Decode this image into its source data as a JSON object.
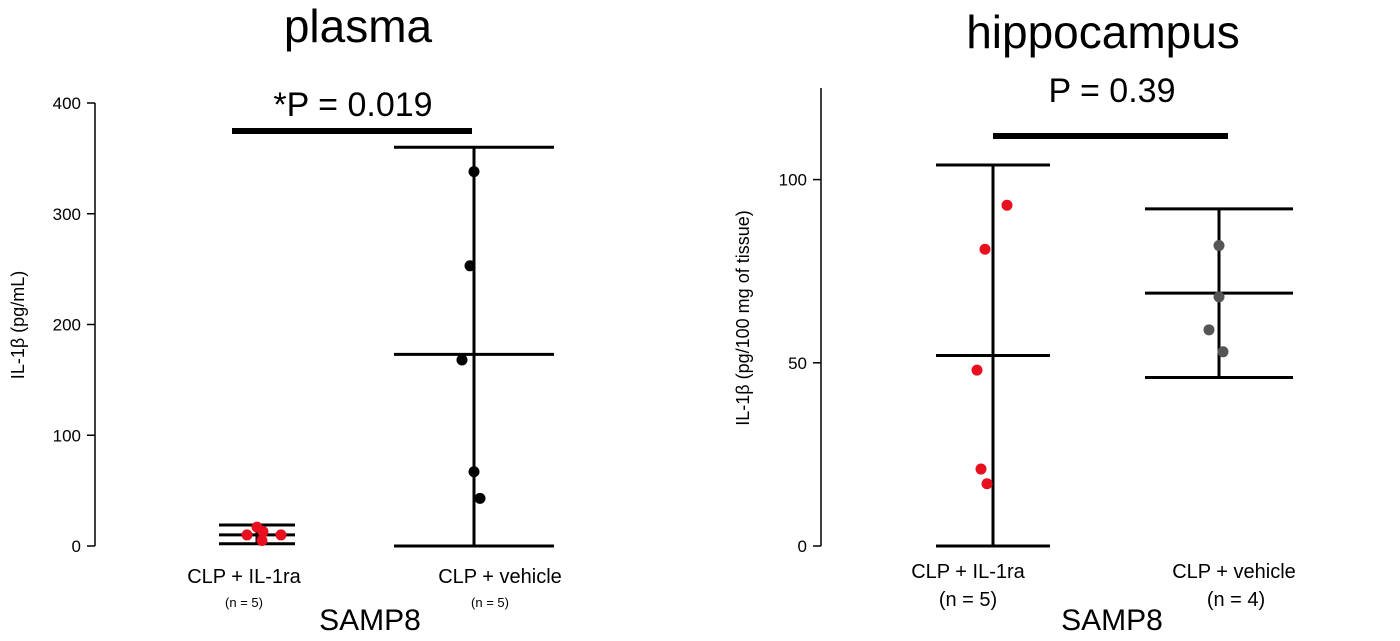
{
  "chart_data": [
    {
      "type": "scatter",
      "title": "plasma",
      "ylabel": "IL-1β (pg/mL)",
      "xlabel": "SAMP8",
      "ylim": [
        0,
        400
      ],
      "yticks": [
        "0",
        "100",
        "200",
        "300",
        "400"
      ],
      "significance": "*P = 0.019",
      "categories": [
        {
          "label": "CLP + IL-1ra",
          "n_label": "(n = 5)",
          "color": "#e8101e",
          "points": [
            17,
            13,
            10,
            10,
            5
          ],
          "mean": 10,
          "error_low": 2,
          "error_high": 19
        },
        {
          "label": "CLP + vehicle",
          "n_label": "(n = 5)",
          "color": "#000000",
          "points": [
            338,
            253,
            168,
            67,
            43
          ],
          "mean": 173,
          "error_low": 0,
          "error_high": 360
        }
      ]
    },
    {
      "type": "scatter",
      "title": "hippocampus",
      "ylabel": "IL-1β (pg/100 mg of tissue)",
      "xlabel": "SAMP8",
      "ylim": [
        0,
        125
      ],
      "yticks": [
        "0",
        "50",
        "100"
      ],
      "significance": "P = 0.39",
      "categories": [
        {
          "label": "CLP + IL-1ra",
          "n_label": "(n = 5)",
          "color": "#e8101e",
          "points": [
            93,
            81,
            48,
            21,
            17
          ],
          "mean": 52,
          "error_low": 0,
          "error_high": 104
        },
        {
          "label": "CLP + vehicle",
          "n_label": "(n = 4)",
          "color": "#555555",
          "points": [
            82,
            68,
            59,
            53
          ],
          "mean": 69,
          "error_low": 46,
          "error_high": 92
        }
      ]
    }
  ]
}
